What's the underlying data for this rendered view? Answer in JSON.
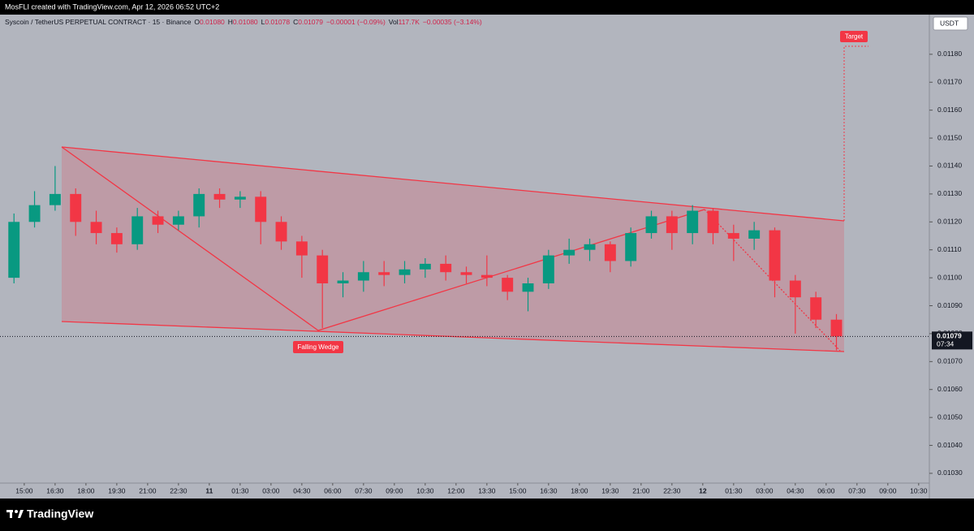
{
  "header": "MosFLI created with TradingView.com, Apr 12, 2026 06:52 UTC+2",
  "footer": {
    "logo": "TradingView"
  },
  "chart_data": {
    "type": "candlestick",
    "title": "Syscoin / TetherUS PERPETUAL CONTRACT · 15 · Binance",
    "legend": {
      "ohlc": [
        {
          "label": "O",
          "value": "0.01080"
        },
        {
          "label": "H",
          "value": "0.01080"
        },
        {
          "label": "L",
          "value": "0.01078"
        },
        {
          "label": "C",
          "value": "0.01079"
        }
      ],
      "change": "−0.00001 (−0.09%)",
      "volume_label": "Vol",
      "volume": "117.7K",
      "volume_change": "−0.00035 (−3.14%)"
    },
    "currency": "USDT",
    "annotations": [
      "Falling Wedge",
      "Target"
    ],
    "up_color": "#089981",
    "down_color": "#f23645",
    "x": [
      -0.5,
      0.5,
      1.5,
      2.5,
      3.5,
      4.5,
      5.5,
      6.5,
      7.5,
      8.5,
      9.5,
      10.5,
      11.5,
      12.5,
      13.5,
      14.5,
      15.5,
      16.5,
      17.5,
      18.5,
      19.5,
      20.5,
      21.5,
      22.5,
      23.5,
      24.5,
      25.5,
      26.5,
      27.5,
      28.5,
      29.5,
      30.5,
      31.5,
      32.5,
      33.5,
      34.5,
      35.5,
      36.5,
      37.5,
      38.5,
      39.5
    ],
    "open": [
      0.011,
      0.0112,
      0.01126,
      0.0113,
      0.0112,
      0.01116,
      0.01112,
      0.01122,
      0.01119,
      0.01122,
      0.0113,
      0.01128,
      0.01129,
      0.0112,
      0.01113,
      0.01108,
      0.01098,
      0.01099,
      0.01102,
      0.01101,
      0.01103,
      0.01105,
      0.01102,
      0.01101,
      0.011,
      0.01095,
      0.01098,
      0.01108,
      0.0111,
      0.01112,
      0.01106,
      0.01116,
      0.01122,
      0.01116,
      0.01124,
      0.01116,
      0.01114,
      0.01117,
      0.01099,
      0.01093,
      0.01085
    ],
    "high": [
      0.01123,
      0.01131,
      0.0114,
      0.01132,
      0.01124,
      0.01118,
      0.01125,
      0.01124,
      0.01124,
      0.01132,
      0.01132,
      0.01131,
      0.01131,
      0.01122,
      0.01115,
      0.0111,
      0.01102,
      0.01106,
      0.01106,
      0.01106,
      0.01107,
      0.01108,
      0.01104,
      0.01108,
      0.01101,
      0.011,
      0.0111,
      0.01114,
      0.01114,
      0.01113,
      0.01118,
      0.01124,
      0.01124,
      0.01126,
      0.01125,
      0.01119,
      0.0112,
      0.01118,
      0.01101,
      0.01095,
      0.01087
    ],
    "low": [
      0.01098,
      0.01118,
      0.01124,
      0.01115,
      0.01112,
      0.01109,
      0.0111,
      0.01116,
      0.01117,
      0.01118,
      0.01125,
      0.01125,
      0.01112,
      0.0111,
      0.011,
      0.01082,
      0.01093,
      0.01095,
      0.01097,
      0.01098,
      0.011,
      0.01099,
      0.01098,
      0.01097,
      0.01092,
      0.01088,
      0.01096,
      0.01105,
      0.01106,
      0.01102,
      0.01104,
      0.01114,
      0.0111,
      0.01112,
      0.01112,
      0.01106,
      0.0111,
      0.01093,
      0.0108,
      0.01082,
      0.01074
    ],
    "close": [
      0.0112,
      0.01126,
      0.0113,
      0.0112,
      0.01116,
      0.01112,
      0.01122,
      0.01119,
      0.01122,
      0.0113,
      0.01128,
      0.01129,
      0.0112,
      0.01113,
      0.01108,
      0.01098,
      0.01099,
      0.01102,
      0.01101,
      0.01103,
      0.01105,
      0.01102,
      0.01101,
      0.011,
      0.01095,
      0.01098,
      0.01108,
      0.0111,
      0.01112,
      0.01106,
      0.01116,
      0.01122,
      0.01116,
      0.01124,
      0.01116,
      0.01114,
      0.01117,
      0.01099,
      0.01093,
      0.01085,
      0.01079
    ],
    "last_price": {
      "value": 0.01079,
      "label": "0.01079"
    },
    "countdown": "07:34",
    "xlim": [
      -1.18,
      44.02
    ],
    "ylim": [
      0.010265,
      0.011942
    ],
    "xticks": [
      {
        "value": 0,
        "label": "15:00"
      },
      {
        "value": 1.5,
        "label": "16:30"
      },
      {
        "value": 3,
        "label": "18:00"
      },
      {
        "value": 4.5,
        "label": "19:30"
      },
      {
        "value": 6,
        "label": "21:00"
      },
      {
        "value": 7.5,
        "label": "22:30"
      },
      {
        "value": 9,
        "label": "11"
      },
      {
        "value": 10.5,
        "label": "01:30"
      },
      {
        "value": 12,
        "label": "03:00"
      },
      {
        "value": 13.5,
        "label": "04:30"
      },
      {
        "value": 15,
        "label": "06:00"
      },
      {
        "value": 16.5,
        "label": "07:30"
      },
      {
        "value": 18,
        "label": "09:00"
      },
      {
        "value": 19.5,
        "label": "10:30"
      },
      {
        "value": 21,
        "label": "12:00"
      },
      {
        "value": 22.5,
        "label": "13:30"
      },
      {
        "value": 24,
        "label": "15:00"
      },
      {
        "value": 25.5,
        "label": "16:30"
      },
      {
        "value": 27,
        "label": "18:00"
      },
      {
        "value": 28.5,
        "label": "19:30"
      },
      {
        "value": 30,
        "label": "21:00"
      },
      {
        "value": 31.5,
        "label": "22:30"
      },
      {
        "value": 33,
        "label": "12"
      },
      {
        "value": 34.5,
        "label": "01:30"
      },
      {
        "value": 36,
        "label": "03:00"
      },
      {
        "value": 37.5,
        "label": "04:30"
      },
      {
        "value": 39,
        "label": "06:00"
      },
      {
        "value": 40.5,
        "label": "07:30"
      },
      {
        "value": 42,
        "label": "09:00"
      },
      {
        "value": 43.5,
        "label": "10:30"
      }
    ],
    "yticks": [
      {
        "value": 0.0103,
        "label": "0.01030"
      },
      {
        "value": 0.0104,
        "label": "0.01040"
      },
      {
        "value": 0.0105,
        "label": "0.01050"
      },
      {
        "value": 0.0106,
        "label": "0.01060"
      },
      {
        "value": 0.0107,
        "label": "0.01070"
      },
      {
        "value": 0.0108,
        "label": "0.01080"
      },
      {
        "value": 0.0109,
        "label": "0.01090"
      },
      {
        "value": 0.011,
        "label": "0.01100"
      },
      {
        "value": 0.0111,
        "label": "0.01110"
      },
      {
        "value": 0.0112,
        "label": "0.01120"
      },
      {
        "value": 0.0113,
        "label": "0.01130"
      },
      {
        "value": 0.0114,
        "label": "0.01140"
      },
      {
        "value": 0.0115,
        "label": "0.01150"
      },
      {
        "value": 0.0116,
        "label": "0.01160"
      },
      {
        "value": 0.0117,
        "label": "0.01170"
      },
      {
        "value": 0.0118,
        "label": "0.01180"
      }
    ]
  }
}
